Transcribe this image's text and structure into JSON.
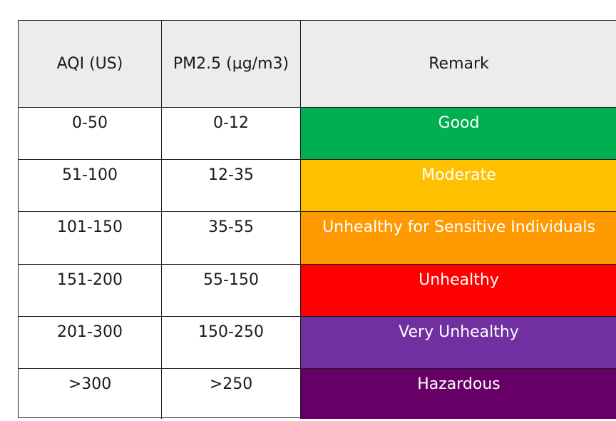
{
  "table": {
    "headers": [
      "AQI (US)",
      "PM2.5 (µg/m3)",
      "Remark"
    ],
    "rows": [
      {
        "aqi": "0-50",
        "pm25": "0-12",
        "remark": "Good",
        "color": "#00b050"
      },
      {
        "aqi": "51-100",
        "pm25": "12-35",
        "remark": "Moderate",
        "color": "#ffc000"
      },
      {
        "aqi": "101-150",
        "pm25": "35-55",
        "remark": "Unhealthy for Sensitive Individuals",
        "color": "#ff9900"
      },
      {
        "aqi": "151-200",
        "pm25": "55-150",
        "remark": "Unhealthy",
        "color": "#ff0000"
      },
      {
        "aqi": "201-300",
        "pm25": "150-250",
        "remark": "Very Unhealthy",
        "color": "#7030a0"
      },
      {
        "aqi": ">300",
        "pm25": ">250",
        "remark": "Hazardous",
        "color": "#660066"
      }
    ]
  }
}
